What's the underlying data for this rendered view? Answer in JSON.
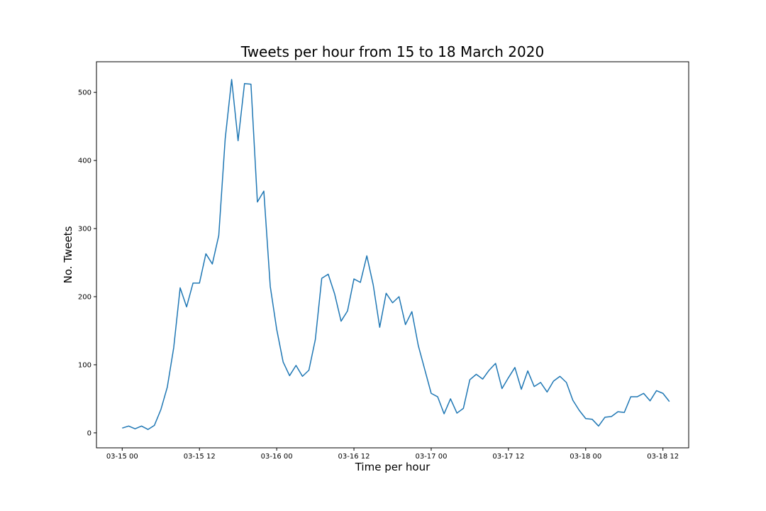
{
  "chart_data": {
    "type": "line",
    "title": "Tweets per hour from 15 to 18 March 2020",
    "xlabel": "Time per hour",
    "ylabel": "No. Tweets",
    "xlim": [
      "03-14 20",
      "03-18 16"
    ],
    "ylim": [
      -22,
      545
    ],
    "x_ticks": [
      {
        "label": "03-15 00",
        "value": "03-15 00"
      },
      {
        "label": "03-15 12",
        "value": "03-15 12"
      },
      {
        "label": "03-16 00",
        "value": "03-16 00"
      },
      {
        "label": "03-16 12",
        "value": "03-16 12"
      },
      {
        "label": "03-17 00",
        "value": "03-17 00"
      },
      {
        "label": "03-17 12",
        "value": "03-17 12"
      },
      {
        "label": "03-18 00",
        "value": "03-18 00"
      },
      {
        "label": "03-18 12",
        "value": "03-18 12"
      }
    ],
    "y_ticks": [
      0,
      100,
      200,
      300,
      400,
      500
    ],
    "grid": false,
    "legend": "none",
    "series": [
      {
        "color": "#1f77b4",
        "x": [
          "03-15 00",
          "03-15 01",
          "03-15 02",
          "03-15 03",
          "03-15 04",
          "03-15 05",
          "03-15 06",
          "03-15 07",
          "03-15 08",
          "03-15 09",
          "03-15 10",
          "03-15 11",
          "03-15 12",
          "03-15 13",
          "03-15 14",
          "03-15 15",
          "03-15 16",
          "03-15 17",
          "03-15 18",
          "03-15 19",
          "03-15 20",
          "03-15 21",
          "03-15 22",
          "03-15 23",
          "03-16 00",
          "03-16 01",
          "03-16 02",
          "03-16 03",
          "03-16 04",
          "03-16 05",
          "03-16 06",
          "03-16 07",
          "03-16 08",
          "03-16 09",
          "03-16 10",
          "03-16 11",
          "03-16 12",
          "03-16 13",
          "03-16 14",
          "03-16 15",
          "03-16 16",
          "03-16 17",
          "03-16 18",
          "03-16 19",
          "03-16 20",
          "03-16 21",
          "03-16 22",
          "03-16 23",
          "03-17 00",
          "03-17 01",
          "03-17 02",
          "03-17 03",
          "03-17 04",
          "03-17 05",
          "03-17 06",
          "03-17 07",
          "03-17 08",
          "03-17 09",
          "03-17 10",
          "03-17 11",
          "03-17 12",
          "03-17 13",
          "03-17 14",
          "03-17 15",
          "03-17 16",
          "03-17 17",
          "03-17 18",
          "03-17 19",
          "03-17 20",
          "03-17 21",
          "03-17 22",
          "03-17 23",
          "03-18 00",
          "03-18 01",
          "03-18 02",
          "03-18 03",
          "03-18 04",
          "03-18 05",
          "03-18 06",
          "03-18 07",
          "03-18 08",
          "03-18 09",
          "03-18 10",
          "03-18 11",
          "03-18 12",
          "03-18 13"
        ],
        "values": [
          7,
          10,
          6,
          10,
          5,
          11,
          34,
          67,
          125,
          213,
          185,
          220,
          220,
          263,
          248,
          290,
          432,
          519,
          429,
          513,
          512,
          339,
          355,
          215,
          152,
          104,
          84,
          99,
          83,
          92,
          137,
          227,
          233,
          204,
          164,
          179,
          226,
          221,
          260,
          217,
          155,
          205,
          191,
          200,
          159,
          178,
          128,
          93,
          58,
          53,
          28,
          50,
          29,
          36,
          78,
          86,
          79,
          92,
          102,
          65,
          81,
          96,
          64,
          91,
          68,
          74,
          60,
          76,
          83,
          74,
          48,
          33,
          21,
          20,
          10,
          23,
          24,
          31,
          30,
          53,
          53,
          58,
          47,
          62,
          58,
          46
        ]
      }
    ]
  }
}
